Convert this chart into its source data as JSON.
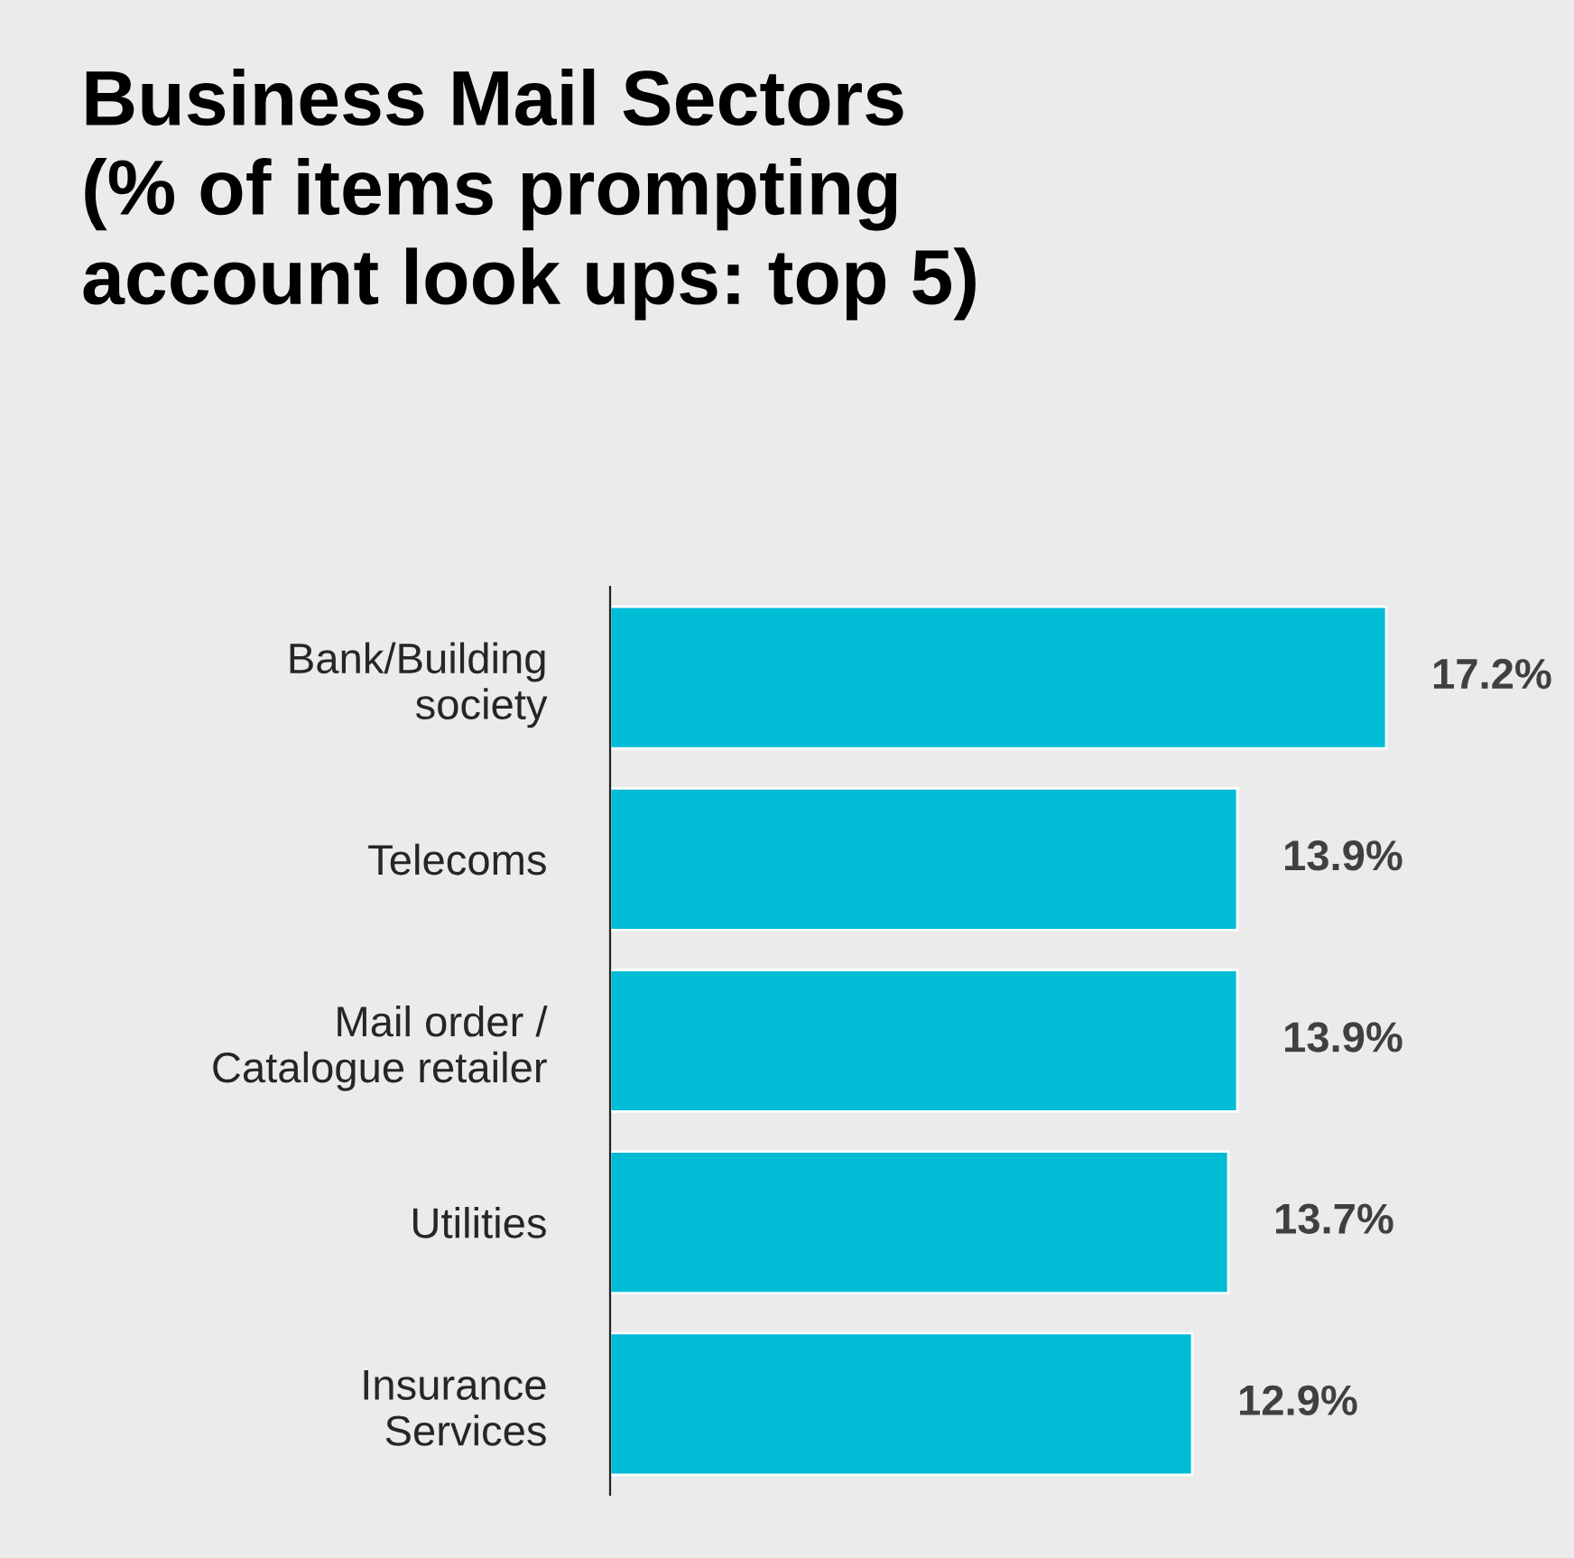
{
  "chart_data": {
    "type": "bar",
    "orientation": "horizontal",
    "title": "Business Mail Sectors\n(% of items prompting\naccount look ups: top 5)",
    "categories": [
      "Bank/Building\nsociety",
      "Telecoms",
      "Mail order /\nCatalogue retailer",
      "Utilities",
      "Insurance\nServices"
    ],
    "values": [
      17.2,
      13.9,
      13.9,
      13.7,
      12.9
    ],
    "value_labels": [
      "17.2%",
      "13.9%",
      "13.9%",
      "13.7%",
      "12.9%"
    ],
    "color": "#00bcd4",
    "grid": false,
    "legend": false,
    "tick_labels": "y"
  }
}
